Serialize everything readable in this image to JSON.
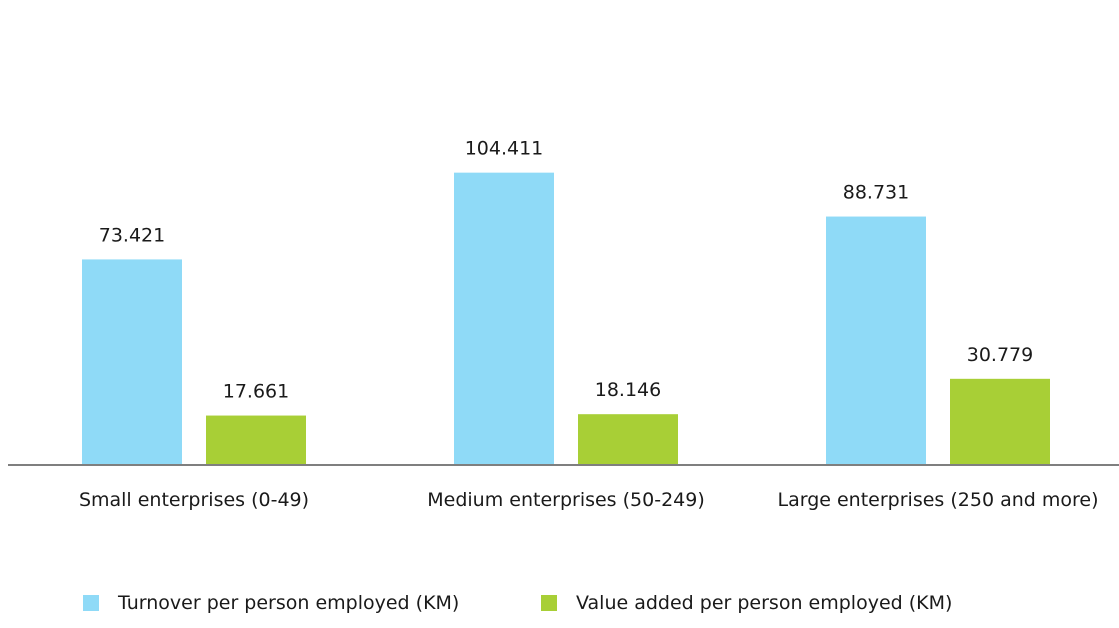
{
  "chart_data": {
    "type": "bar",
    "categories": [
      "Small enterprises (0-49)",
      "Medium enterprises (50-249)",
      "Large enterprises (250 and more)"
    ],
    "series": [
      {
        "name": "Turnover per person employed (KM)",
        "values": [
          73.421,
          104.411,
          88.731
        ],
        "labels": [
          "73.421",
          "104.411",
          "88.731"
        ],
        "color": "#8fdaf7"
      },
      {
        "name": "Value added per person employed (KM)",
        "values": [
          17.661,
          18.146,
          30.779
        ],
        "labels": [
          "17.661",
          "18.146",
          "30.779"
        ],
        "color": "#a8cf36"
      }
    ],
    "title": "",
    "xlabel": "",
    "ylabel": "",
    "ylim": [
      0,
      110
    ],
    "grid": false,
    "legend": "bottom",
    "data_labels": true,
    "baseline_color": "#7f7f7f"
  }
}
